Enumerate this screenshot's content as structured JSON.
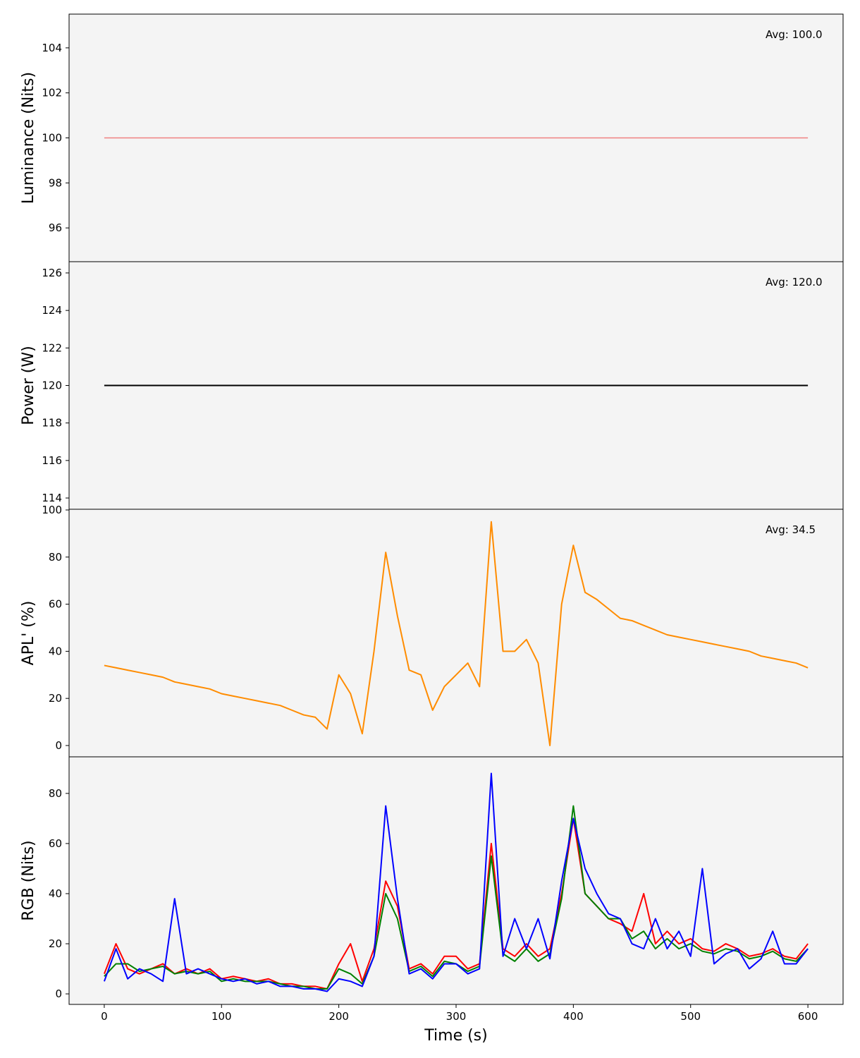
{
  "chart_data": [
    {
      "type": "line",
      "ylabel": "Luminance (Nits)",
      "annotation": "Avg: 100.0",
      "x": [
        0,
        600
      ],
      "series": [
        {
          "color": "#f08080",
          "values": [
            100,
            100
          ]
        }
      ],
      "xlim": [
        -30,
        630
      ],
      "ylim": [
        94.5,
        105.5
      ],
      "yticks": [
        96,
        98,
        100,
        102,
        104
      ]
    },
    {
      "type": "line",
      "ylabel": "Power (W)",
      "annotation": "Avg: 120.0",
      "x": [
        0,
        600
      ],
      "series": [
        {
          "color": "#000000",
          "values": [
            120,
            120
          ]
        }
      ],
      "xlim": [
        -30,
        630
      ],
      "ylim": [
        113.4,
        126.6
      ],
      "yticks": [
        114,
        116,
        118,
        120,
        122,
        124,
        126
      ]
    },
    {
      "type": "line",
      "ylabel": "APL' (%)",
      "annotation": "Avg: 34.5",
      "x": [
        0,
        10,
        20,
        30,
        40,
        50,
        60,
        70,
        80,
        90,
        100,
        110,
        120,
        130,
        140,
        150,
        160,
        170,
        180,
        190,
        200,
        210,
        220,
        230,
        240,
        250,
        260,
        270,
        280,
        290,
        300,
        310,
        320,
        330,
        340,
        350,
        360,
        370,
        380,
        390,
        400,
        410,
        420,
        430,
        440,
        450,
        460,
        470,
        480,
        490,
        500,
        510,
        520,
        530,
        540,
        550,
        560,
        570,
        580,
        590,
        600
      ],
      "series": [
        {
          "color": "#ff8c00",
          "values": [
            34,
            33,
            32,
            31,
            30,
            29,
            27,
            26,
            25,
            24,
            22,
            21,
            20,
            19,
            18,
            17,
            15,
            13,
            12,
            7,
            30,
            22,
            5,
            40,
            82,
            55,
            32,
            30,
            15,
            25,
            30,
            35,
            25,
            95,
            40,
            40,
            45,
            35,
            0,
            60,
            85,
            65,
            62,
            58,
            54,
            53,
            51,
            49,
            47,
            46,
            45,
            44,
            43,
            42,
            41,
            40,
            38,
            37,
            36,
            35,
            33
          ]
        }
      ],
      "xlim": [
        -30,
        630
      ],
      "ylim": [
        -4.8,
        100.3
      ],
      "yticks": [
        0,
        20,
        40,
        60,
        80,
        100
      ]
    },
    {
      "type": "line",
      "ylabel": "RGB (Nits)",
      "xlabel": "Time (s)",
      "x": [
        0,
        10,
        20,
        30,
        40,
        50,
        60,
        70,
        80,
        90,
        100,
        110,
        120,
        130,
        140,
        150,
        160,
        170,
        180,
        190,
        200,
        210,
        220,
        230,
        240,
        250,
        260,
        270,
        280,
        290,
        300,
        310,
        320,
        330,
        340,
        350,
        360,
        370,
        380,
        390,
        400,
        410,
        420,
        430,
        440,
        450,
        460,
        470,
        480,
        490,
        500,
        510,
        520,
        530,
        540,
        550,
        560,
        570,
        580,
        590,
        600
      ],
      "series": [
        {
          "color": "#ff0000",
          "values": [
            8,
            20,
            10,
            8,
            10,
            12,
            8,
            10,
            8,
            10,
            6,
            7,
            6,
            5,
            6,
            4,
            4,
            3,
            3,
            2,
            12,
            20,
            5,
            18,
            45,
            35,
            10,
            12,
            8,
            15,
            15,
            10,
            12,
            60,
            18,
            15,
            20,
            15,
            18,
            40,
            70,
            40,
            35,
            30,
            28,
            25,
            40,
            20,
            25,
            20,
            22,
            18,
            17,
            20,
            18,
            15,
            16,
            18,
            15,
            14,
            20
          ]
        },
        {
          "color": "#008000",
          "values": [
            7,
            12,
            12,
            9,
            10,
            11,
            8,
            9,
            8,
            9,
            5,
            6,
            5,
            5,
            5,
            4,
            3,
            3,
            2,
            2,
            10,
            8,
            4,
            15,
            40,
            30,
            9,
            11,
            7,
            13,
            12,
            9,
            11,
            55,
            16,
            13,
            18,
            13,
            16,
            38,
            75,
            40,
            35,
            30,
            30,
            22,
            25,
            18,
            22,
            18,
            20,
            17,
            16,
            18,
            17,
            14,
            15,
            17,
            14,
            13,
            18
          ]
        },
        {
          "color": "#0000ff",
          "values": [
            5,
            18,
            6,
            10,
            8,
            5,
            38,
            8,
            10,
            8,
            6,
            5,
            6,
            4,
            5,
            3,
            3,
            2,
            2,
            1,
            6,
            5,
            3,
            15,
            75,
            38,
            8,
            10,
            6,
            12,
            12,
            8,
            10,
            88,
            15,
            30,
            18,
            30,
            14,
            45,
            70,
            50,
            40,
            32,
            30,
            20,
            18,
            30,
            18,
            25,
            15,
            50,
            12,
            16,
            18,
            10,
            14,
            25,
            12,
            12,
            18
          ]
        }
      ],
      "xlim": [
        -30,
        630
      ],
      "ylim": [
        -4.2,
        94.6
      ],
      "yticks": [
        0,
        20,
        40,
        60,
        80
      ],
      "xticks": [
        0,
        100,
        200,
        300,
        400,
        500,
        600
      ]
    }
  ]
}
